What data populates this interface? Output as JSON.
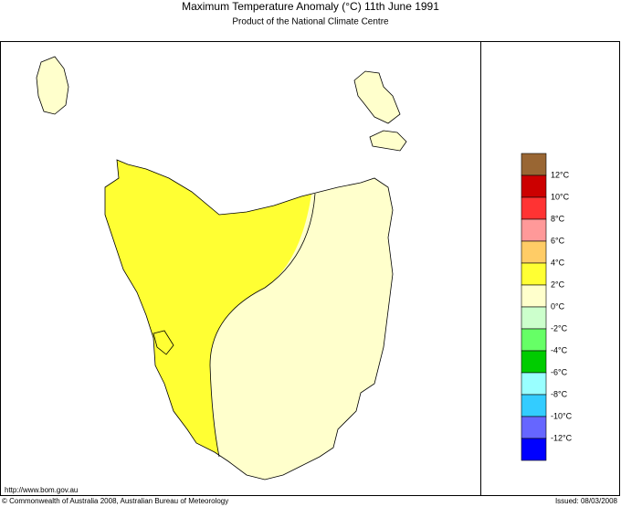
{
  "header": {
    "title": "Maximum Temperature Anomaly (°C)  11th June 1991",
    "subtitle": "Product of the National Climate Centre"
  },
  "legend": {
    "labels": [
      "12°C",
      "10°C",
      "8°C",
      "6°C",
      "4°C",
      "2°C",
      "0°C",
      "-2°C",
      "-4°C",
      "-6°C",
      "-8°C",
      "-10°C",
      "-12°C"
    ]
  },
  "footer": {
    "url": "http://www.bom.gov.au",
    "copyright": "© Commonwealth of Australia 2008, Australian Bureau of Meteorology",
    "issued": "Issued: 08/03/2008"
  }
}
